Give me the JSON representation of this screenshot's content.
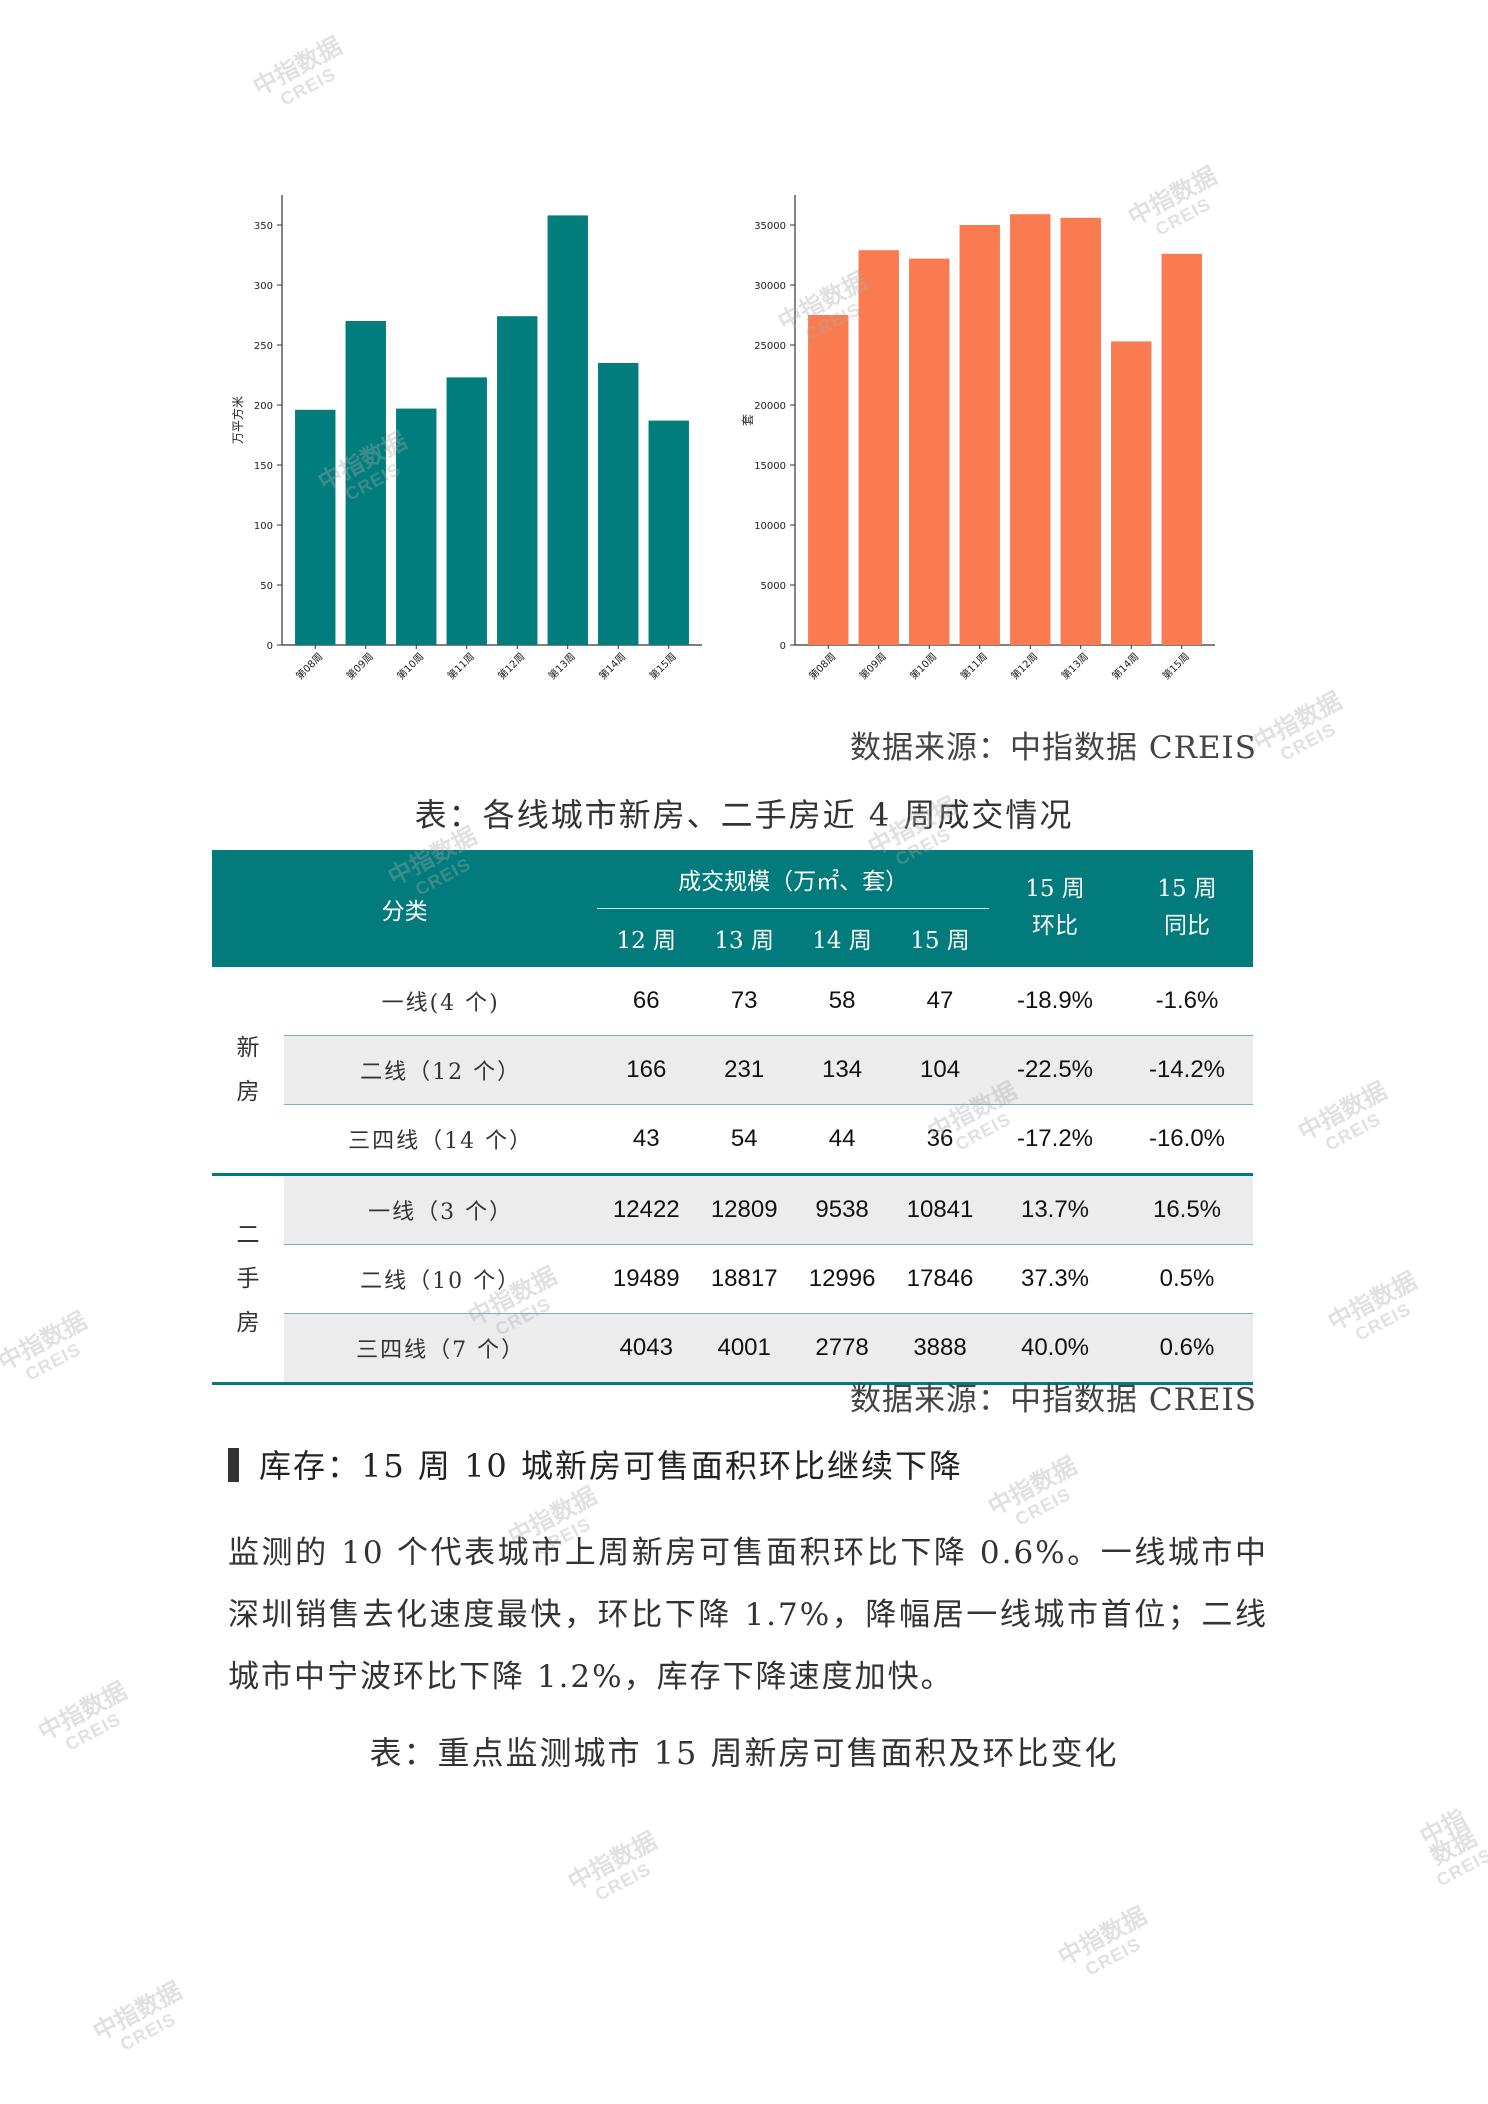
{
  "chart_data": [
    {
      "type": "bar",
      "categories": [
        "第08周",
        "第09周",
        "第10周",
        "第11周",
        "第12周",
        "第13周",
        "第14周",
        "第15周"
      ],
      "values": [
        196,
        270,
        197,
        223,
        274,
        358,
        235,
        187
      ],
      "ylabel": "万平方米",
      "yticks": [
        0,
        50,
        100,
        150,
        200,
        250,
        300,
        350
      ],
      "ylim": [
        0,
        375
      ],
      "color": "#017d7d",
      "grid": false
    },
    {
      "type": "bar",
      "categories": [
        "第08周",
        "第09周",
        "第10周",
        "第11周",
        "第12周",
        "第13周",
        "第14周",
        "第15周"
      ],
      "values": [
        27500,
        32900,
        32200,
        35000,
        35900,
        35600,
        25300,
        32600
      ],
      "ylabel": "套",
      "yticks": [
        0,
        5000,
        10000,
        15000,
        20000,
        25000,
        30000,
        35000
      ],
      "ylim": [
        0,
        37500
      ],
      "color": "#fb7b50",
      "grid": false
    }
  ],
  "source1": "数据来源：中指数据 CREIS",
  "table_caption": "表：各线城市新房、二手房近 4 周成交情况",
  "table": {
    "col_category": "分类",
    "col_scale": "成交规模（万㎡、套）",
    "weeks": [
      "12 周",
      "13 周",
      "14 周",
      "15 周"
    ],
    "col_mom_top": "15 周",
    "col_mom_bottom": "环比",
    "col_yoy_top": "15 周",
    "col_yoy_bottom": "同比",
    "groups": [
      {
        "label": "新\n房",
        "rows": [
          {
            "name": "一线(4 个)",
            "values": [
              "66",
              "73",
              "58",
              "47"
            ],
            "mom": "-18.9%",
            "yoy": "-1.6%"
          },
          {
            "name": "二线（12 个）",
            "values": [
              "166",
              "231",
              "134",
              "104"
            ],
            "mom": "-22.5%",
            "yoy": "-14.2%"
          },
          {
            "name": "三四线（14 个）",
            "values": [
              "43",
              "54",
              "44",
              "36"
            ],
            "mom": "-17.2%",
            "yoy": "-16.0%"
          }
        ]
      },
      {
        "label": "二\n手\n房",
        "rows": [
          {
            "name": "一线（3 个）",
            "values": [
              "12422",
              "12809",
              "9538",
              "10841"
            ],
            "mom": "13.7%",
            "yoy": "16.5%"
          },
          {
            "name": "二线（10 个）",
            "values": [
              "19489",
              "18817",
              "12996",
              "17846"
            ],
            "mom": "37.3%",
            "yoy": "0.5%"
          },
          {
            "name": "三四线（7 个）",
            "values": [
              "4043",
              "4001",
              "2778",
              "3888"
            ],
            "mom": "40.0%",
            "yoy": "0.6%"
          }
        ]
      }
    ]
  },
  "source2": "数据来源：中指数据 CREIS",
  "section_heading": "库存：15 周 10 城新房可售面积环比继续下降",
  "paragraph": "监测的 10 个代表城市上周新房可售面积环比下降 0.6%。一线城市中深圳销售去化速度最快，环比下降 1.7%，降幅居一线城市首位；二线城市中宁波环比下降 1.2%，库存下降速度加快。",
  "table2_caption": "表：重点监测城市 15 周新房可售面积及环比变化",
  "watermark": {
    "zh": "中指数据",
    "en": "CREIS"
  },
  "colors": {
    "teal": "#017b7b",
    "orange": "#fb7b50",
    "negative": "#1aa04a",
    "positive": "#d23b3b"
  }
}
